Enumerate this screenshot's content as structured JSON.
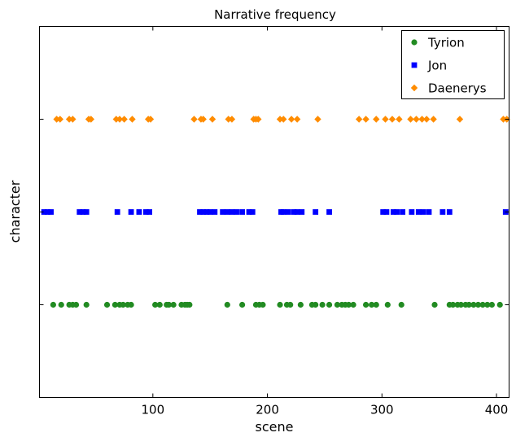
{
  "chart_data": {
    "type": "scatter",
    "title": "Narrative frequency",
    "xlabel": "scene",
    "ylabel": "character",
    "xlim": [
      1,
      411
    ],
    "ylim": [
      0,
      4
    ],
    "xticks": [
      100,
      200,
      300,
      400
    ],
    "yticks": [
      1,
      2,
      3
    ],
    "grid": false,
    "legend": {
      "position": "top-right"
    },
    "series": [
      {
        "name": "Tyrion",
        "marker": "circle",
        "color": "#228B22",
        "y": 1,
        "x": [
          13,
          20,
          27,
          30,
          33,
          42,
          60,
          67,
          71,
          74,
          78,
          81,
          102,
          106,
          112,
          114,
          118,
          125,
          128,
          130,
          132,
          165,
          178,
          190,
          193,
          196,
          211,
          217,
          220,
          229,
          239,
          242,
          248,
          254,
          261,
          265,
          268,
          271,
          275,
          286,
          291,
          295,
          305,
          317,
          346,
          359,
          362,
          366,
          369,
          373,
          376,
          380,
          384,
          388,
          392,
          396,
          403
        ]
      },
      {
        "name": "Jon",
        "marker": "square",
        "color": "#0000FF",
        "y": 2,
        "x": [
          5,
          8,
          11,
          36,
          39,
          42,
          69,
          81,
          88,
          94,
          97,
          141,
          144,
          147,
          150,
          154,
          161,
          165,
          169,
          173,
          178,
          184,
          187,
          212,
          214,
          218,
          223,
          226,
          230,
          242,
          254,
          301,
          304,
          310,
          313,
          318,
          326,
          332,
          336,
          341,
          353,
          359,
          408
        ]
      },
      {
        "name": "Daenerys",
        "marker": "diamond",
        "color": "#FF8C00",
        "y": 3,
        "x": [
          16,
          19,
          27,
          30,
          44,
          46,
          68,
          71,
          75,
          82,
          96,
          98,
          136,
          142,
          144,
          152,
          166,
          169,
          188,
          190,
          192,
          211,
          214,
          221,
          226,
          244,
          280,
          286,
          295,
          303,
          309,
          315,
          325,
          330,
          335,
          339,
          345,
          368,
          406,
          409
        ]
      }
    ]
  }
}
